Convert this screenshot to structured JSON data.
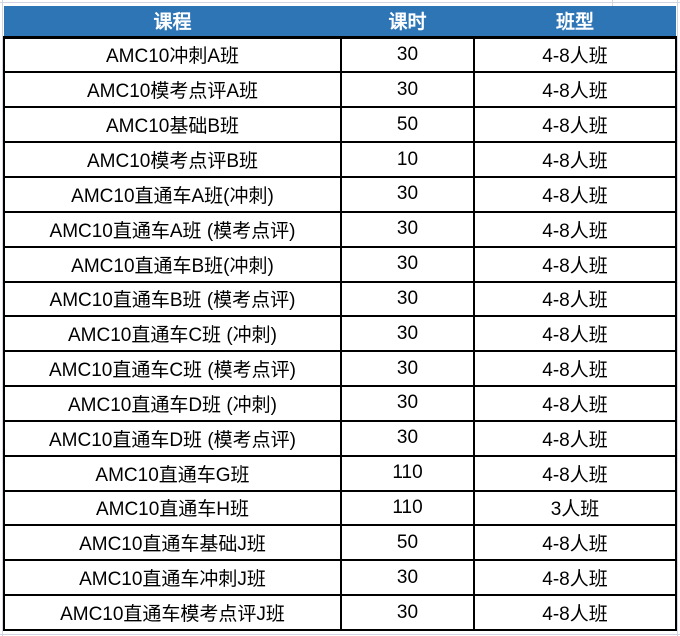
{
  "table": {
    "headers": [
      "课程",
      "课时",
      "班型"
    ],
    "rows": [
      {
        "course": "AMC10冲刺A班",
        "hours": "30",
        "class_type": "4-8人班"
      },
      {
        "course": "AMC10模考点评A班",
        "hours": "30",
        "class_type": "4-8人班"
      },
      {
        "course": "AMC10基础B班",
        "hours": "50",
        "class_type": "4-8人班"
      },
      {
        "course": "AMC10模考点评B班",
        "hours": "10",
        "class_type": "4-8人班"
      },
      {
        "course": "AMC10直通车A班(冲刺)",
        "hours": "30",
        "class_type": "4-8人班"
      },
      {
        "course": "AMC10直通车A班 (模考点评)",
        "hours": "30",
        "class_type": "4-8人班"
      },
      {
        "course": "AMC10直通车B班(冲刺)",
        "hours": "30",
        "class_type": "4-8人班"
      },
      {
        "course": "AMC10直通车B班 (模考点评)",
        "hours": "30",
        "class_type": "4-8人班"
      },
      {
        "course": "AMC10直通车C班 (冲刺)",
        "hours": "30",
        "class_type": "4-8人班"
      },
      {
        "course": "AMC10直通车C班 (模考点评)",
        "hours": "30",
        "class_type": "4-8人班"
      },
      {
        "course": "AMC10直通车D班 (冲刺)",
        "hours": "30",
        "class_type": "4-8人班"
      },
      {
        "course": "AMC10直通车D班 (模考点评)",
        "hours": "30",
        "class_type": "4-8人班"
      },
      {
        "course": "AMC10直通车G班",
        "hours": "110",
        "class_type": "4-8人班"
      },
      {
        "course": "AMC10直通车H班",
        "hours": "110",
        "class_type": "3人班"
      },
      {
        "course": "AMC10直通车基础J班",
        "hours": "50",
        "class_type": "4-8人班"
      },
      {
        "course": "AMC10直通车冲刺J班",
        "hours": "30",
        "class_type": "4-8人班"
      },
      {
        "course": "AMC10直通车模考点评J班",
        "hours": "30",
        "class_type": "4-8人班"
      }
    ]
  },
  "colors": {
    "header_bg": "#2E75B6",
    "header_text": "#FFFFFF",
    "border": "#000000",
    "gridline": "#D4D5E2",
    "body_text": "#000000",
    "background": "#FFFFFF"
  }
}
